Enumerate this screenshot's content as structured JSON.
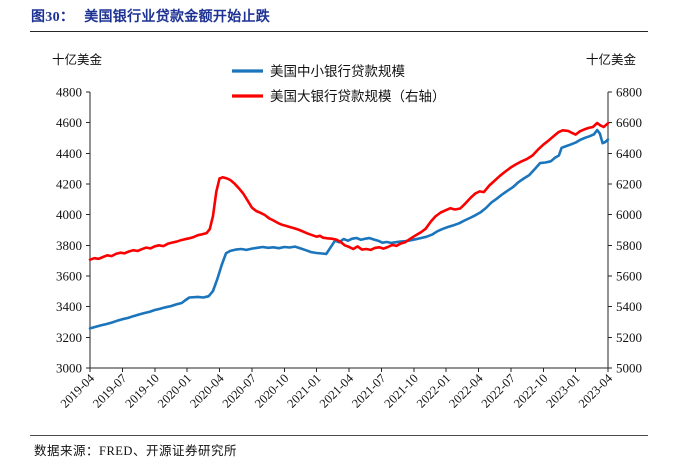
{
  "title": {
    "prefix": "图30：",
    "text": "美国银行业贷款金额开始止跌"
  },
  "footer": {
    "source": "数据来源：FRED、开源证券研究所"
  },
  "chart_data": {
    "type": "line",
    "left_axis": {
      "unit_label": "十亿美金",
      "min": 3000,
      "max": 4800,
      "tick_step": 200,
      "tick_values": [
        4800,
        4600,
        4400,
        4200,
        4000,
        3800,
        3600,
        3400,
        3200,
        3000
      ]
    },
    "right_axis": {
      "unit_label": "十亿美金",
      "min": 5000,
      "max": 6800,
      "tick_step": 200,
      "tick_values": [
        6800,
        6600,
        6400,
        6200,
        6000,
        5800,
        5600,
        5400,
        5200,
        5000
      ]
    },
    "x_axis": {
      "tick_labels": [
        "2019-04",
        "2019-07",
        "2019-10",
        "2020-01",
        "2020-04",
        "2020-07",
        "2020-10",
        "2021-01",
        "2021-04",
        "2021-07",
        "2021-10",
        "2022-01",
        "2022-04",
        "2022-07",
        "2022-10",
        "2023-01",
        "2023-04"
      ],
      "months_total": 48,
      "start_label": "2019-04",
      "end_label": "2023-04"
    },
    "legend": [
      {
        "label": "美国中小银行贷款规模",
        "color": "#1B75BC"
      },
      {
        "label": "美国大银行贷款规模（右轴）",
        "color": "#FB0000"
      }
    ],
    "series": [
      {
        "name": "美国中小银行贷款规模",
        "axis": "left",
        "color": "#1B75BC",
        "points": [
          [
            0,
            3258
          ],
          [
            0.5,
            3268
          ],
          [
            1,
            3278
          ],
          [
            1.5,
            3286
          ],
          [
            2,
            3296
          ],
          [
            2.5,
            3308
          ],
          [
            3,
            3318
          ],
          [
            3.5,
            3326
          ],
          [
            4,
            3338
          ],
          [
            4.5,
            3348
          ],
          [
            5,
            3358
          ],
          [
            5.5,
            3366
          ],
          [
            6,
            3378
          ],
          [
            6.5,
            3386
          ],
          [
            7,
            3396
          ],
          [
            7.5,
            3404
          ],
          [
            8,
            3415
          ],
          [
            8.5,
            3424
          ],
          [
            8.8,
            3440
          ],
          [
            9.2,
            3460
          ],
          [
            10,
            3464
          ],
          [
            10.5,
            3460
          ],
          [
            11,
            3468
          ],
          [
            11.4,
            3502
          ],
          [
            11.8,
            3580
          ],
          [
            12.2,
            3672
          ],
          [
            12.6,
            3748
          ],
          [
            13,
            3764
          ],
          [
            13.5,
            3772
          ],
          [
            14,
            3776
          ],
          [
            14.5,
            3770
          ],
          [
            15,
            3779
          ],
          [
            15.5,
            3784
          ],
          [
            16,
            3789
          ],
          [
            16.5,
            3784
          ],
          [
            17,
            3787
          ],
          [
            17.5,
            3781
          ],
          [
            18,
            3789
          ],
          [
            18.5,
            3786
          ],
          [
            19,
            3792
          ],
          [
            19.5,
            3780
          ],
          [
            20,
            3768
          ],
          [
            20.5,
            3756
          ],
          [
            21,
            3750
          ],
          [
            21.5,
            3747
          ],
          [
            21.9,
            3744
          ],
          [
            22.3,
            3788
          ],
          [
            22.7,
            3830
          ],
          [
            23.1,
            3820
          ],
          [
            23.5,
            3841
          ],
          [
            23.9,
            3830
          ],
          [
            24.3,
            3843
          ],
          [
            24.7,
            3848
          ],
          [
            25.1,
            3836
          ],
          [
            25.5,
            3843
          ],
          [
            25.9,
            3847
          ],
          [
            26.3,
            3838
          ],
          [
            26.7,
            3830
          ],
          [
            27.1,
            3817
          ],
          [
            27.5,
            3822
          ],
          [
            27.9,
            3816
          ],
          [
            28.3,
            3820
          ],
          [
            28.7,
            3824
          ],
          [
            29.2,
            3827
          ],
          [
            29.7,
            3833
          ],
          [
            30.2,
            3840
          ],
          [
            30.7,
            3848
          ],
          [
            31.2,
            3856
          ],
          [
            31.7,
            3870
          ],
          [
            32.2,
            3892
          ],
          [
            32.7,
            3908
          ],
          [
            33.2,
            3920
          ],
          [
            33.7,
            3931
          ],
          [
            34.2,
            3944
          ],
          [
            34.7,
            3962
          ],
          [
            35.2,
            3978
          ],
          [
            35.7,
            3996
          ],
          [
            36.2,
            4016
          ],
          [
            36.7,
            4044
          ],
          [
            37.2,
            4080
          ],
          [
            37.7,
            4104
          ],
          [
            38.2,
            4132
          ],
          [
            38.7,
            4156
          ],
          [
            39.2,
            4180
          ],
          [
            39.7,
            4212
          ],
          [
            40.2,
            4236
          ],
          [
            40.7,
            4258
          ],
          [
            41.2,
            4296
          ],
          [
            41.7,
            4336
          ],
          [
            42.2,
            4340
          ],
          [
            42.7,
            4348
          ],
          [
            43.1,
            4372
          ],
          [
            43.45,
            4386
          ],
          [
            43.7,
            4436
          ],
          [
            44,
            4444
          ],
          [
            44.5,
            4456
          ],
          [
            45,
            4470
          ],
          [
            45.4,
            4487
          ],
          [
            45.9,
            4502
          ],
          [
            46.3,
            4512
          ],
          [
            46.7,
            4524
          ],
          [
            47,
            4552
          ],
          [
            47.25,
            4528
          ],
          [
            47.5,
            4466
          ],
          [
            47.75,
            4474
          ],
          [
            48,
            4490
          ]
        ]
      },
      {
        "name": "美国大银行贷款规模（右轴）",
        "axis": "right",
        "color": "#FB0000",
        "points": [
          [
            0,
            5706
          ],
          [
            0.4,
            5716
          ],
          [
            0.8,
            5712
          ],
          [
            1.2,
            5724
          ],
          [
            1.6,
            5735
          ],
          [
            2,
            5730
          ],
          [
            2.4,
            5744
          ],
          [
            2.8,
            5752
          ],
          [
            3.2,
            5748
          ],
          [
            3.6,
            5760
          ],
          [
            4,
            5768
          ],
          [
            4.4,
            5763
          ],
          [
            4.8,
            5775
          ],
          [
            5.2,
            5785
          ],
          [
            5.6,
            5780
          ],
          [
            6,
            5794
          ],
          [
            6.4,
            5800
          ],
          [
            6.8,
            5795
          ],
          [
            7.2,
            5810
          ],
          [
            7.6,
            5818
          ],
          [
            8,
            5824
          ],
          [
            8.4,
            5833
          ],
          [
            8.8,
            5840
          ],
          [
            9.2,
            5846
          ],
          [
            9.6,
            5854
          ],
          [
            10,
            5866
          ],
          [
            10.4,
            5872
          ],
          [
            10.8,
            5880
          ],
          [
            11.1,
            5906
          ],
          [
            11.4,
            5992
          ],
          [
            11.7,
            6150
          ],
          [
            12,
            6236
          ],
          [
            12.3,
            6244
          ],
          [
            12.7,
            6236
          ],
          [
            13,
            6226
          ],
          [
            13.4,
            6202
          ],
          [
            13.8,
            6172
          ],
          [
            14.2,
            6138
          ],
          [
            14.6,
            6092
          ],
          [
            15,
            6046
          ],
          [
            15.4,
            6024
          ],
          [
            15.8,
            6012
          ],
          [
            16.2,
            5998
          ],
          [
            16.6,
            5976
          ],
          [
            17,
            5962
          ],
          [
            17.4,
            5946
          ],
          [
            17.8,
            5934
          ],
          [
            18.2,
            5926
          ],
          [
            18.6,
            5918
          ],
          [
            19,
            5910
          ],
          [
            19.4,
            5900
          ],
          [
            19.8,
            5888
          ],
          [
            20.2,
            5876
          ],
          [
            20.6,
            5866
          ],
          [
            21,
            5856
          ],
          [
            21.3,
            5862
          ],
          [
            21.6,
            5850
          ],
          [
            22,
            5846
          ],
          [
            22.4,
            5843
          ],
          [
            22.8,
            5838
          ],
          [
            23.2,
            5824
          ],
          [
            23.6,
            5800
          ],
          [
            24,
            5790
          ],
          [
            24.4,
            5776
          ],
          [
            24.8,
            5793
          ],
          [
            25.2,
            5772
          ],
          [
            25.6,
            5776
          ],
          [
            26,
            5770
          ],
          [
            26.4,
            5783
          ],
          [
            26.8,
            5787
          ],
          [
            27.2,
            5779
          ],
          [
            27.6,
            5789
          ],
          [
            28,
            5803
          ],
          [
            28.4,
            5796
          ],
          [
            28.8,
            5812
          ],
          [
            29.2,
            5820
          ],
          [
            29.7,
            5844
          ],
          [
            30.2,
            5866
          ],
          [
            30.7,
            5887
          ],
          [
            31.1,
            5908
          ],
          [
            31.6,
            5956
          ],
          [
            32,
            5988
          ],
          [
            32.5,
            6014
          ],
          [
            33,
            6030
          ],
          [
            33.4,
            6042
          ],
          [
            33.8,
            6034
          ],
          [
            34.3,
            6040
          ],
          [
            34.8,
            6074
          ],
          [
            35.3,
            6112
          ],
          [
            35.7,
            6138
          ],
          [
            36.1,
            6152
          ],
          [
            36.5,
            6147
          ],
          [
            37,
            6190
          ],
          [
            37.5,
            6222
          ],
          [
            38,
            6254
          ],
          [
            38.5,
            6282
          ],
          [
            39,
            6308
          ],
          [
            39.5,
            6330
          ],
          [
            40,
            6348
          ],
          [
            40.5,
            6364
          ],
          [
            41,
            6386
          ],
          [
            41.5,
            6424
          ],
          [
            42,
            6456
          ],
          [
            42.5,
            6484
          ],
          [
            43,
            6514
          ],
          [
            43.4,
            6538
          ],
          [
            43.8,
            6550
          ],
          [
            44.3,
            6546
          ],
          [
            44.7,
            6532
          ],
          [
            45,
            6522
          ],
          [
            45.4,
            6544
          ],
          [
            45.8,
            6556
          ],
          [
            46.2,
            6566
          ],
          [
            46.6,
            6572
          ],
          [
            47,
            6598
          ],
          [
            47.3,
            6582
          ],
          [
            47.6,
            6572
          ],
          [
            47.9,
            6590
          ],
          [
            48,
            6596
          ]
        ]
      }
    ]
  }
}
